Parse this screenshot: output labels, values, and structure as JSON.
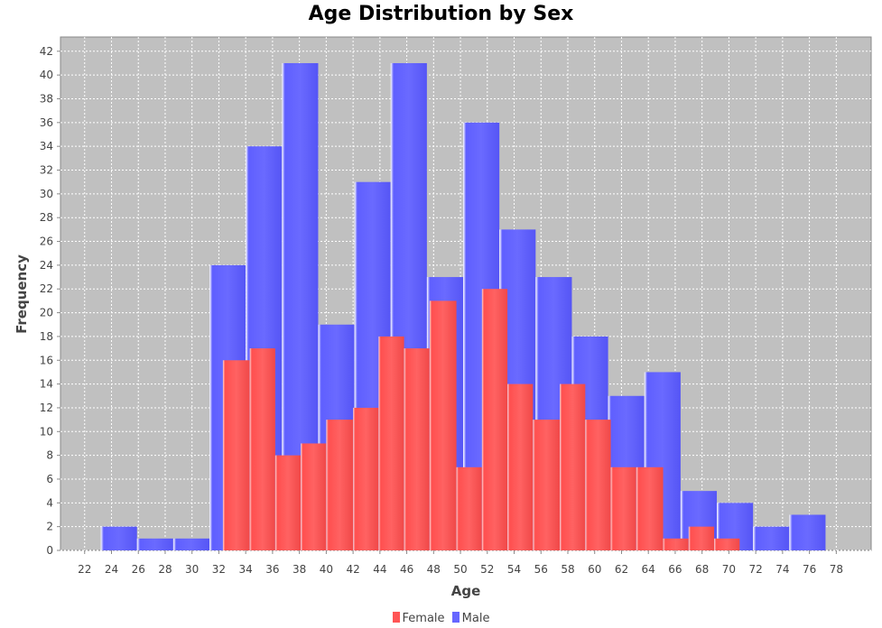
{
  "chart_data": {
    "type": "bar",
    "title": "Age Distribution by Sex",
    "xlabel": "Age",
    "ylabel": "Frequency",
    "xlim": [
      20.2,
      80.6
    ],
    "ylim": [
      0,
      43.2
    ],
    "x_ticks": [
      22,
      24,
      26,
      28,
      30,
      32,
      34,
      36,
      38,
      40,
      42,
      44,
      46,
      48,
      50,
      52,
      54,
      56,
      58,
      60,
      62,
      64,
      66,
      68,
      70,
      72,
      74,
      76,
      78
    ],
    "y_ticks": [
      0,
      2,
      4,
      6,
      8,
      10,
      12,
      14,
      16,
      18,
      20,
      22,
      24,
      26,
      28,
      30,
      32,
      34,
      36,
      38,
      40,
      42
    ],
    "grid": true,
    "legend_position": "bottom",
    "series": [
      {
        "name": "Male",
        "color": "#6666ff",
        "bins": [
          {
            "start": 23.2,
            "end": 25.9,
            "value": 2
          },
          {
            "start": 25.9,
            "end": 28.6,
            "value": 1
          },
          {
            "start": 28.6,
            "end": 31.3,
            "value": 1
          },
          {
            "start": 31.3,
            "end": 34.0,
            "value": 24
          },
          {
            "start": 34.0,
            "end": 36.7,
            "value": 34
          },
          {
            "start": 36.7,
            "end": 39.4,
            "value": 41
          },
          {
            "start": 39.4,
            "end": 42.1,
            "value": 19
          },
          {
            "start": 42.1,
            "end": 44.8,
            "value": 31
          },
          {
            "start": 44.8,
            "end": 47.5,
            "value": 41
          },
          {
            "start": 47.5,
            "end": 50.2,
            "value": 23
          },
          {
            "start": 50.2,
            "end": 52.9,
            "value": 36
          },
          {
            "start": 52.9,
            "end": 55.6,
            "value": 27
          },
          {
            "start": 55.6,
            "end": 58.3,
            "value": 23
          },
          {
            "start": 58.3,
            "end": 61.0,
            "value": 18
          },
          {
            "start": 61.0,
            "end": 63.7,
            "value": 13
          },
          {
            "start": 63.7,
            "end": 66.4,
            "value": 15
          },
          {
            "start": 66.4,
            "end": 69.1,
            "value": 5
          },
          {
            "start": 69.1,
            "end": 71.8,
            "value": 4
          },
          {
            "start": 71.8,
            "end": 74.5,
            "value": 2
          },
          {
            "start": 74.5,
            "end": 77.2,
            "value": 3
          }
        ]
      },
      {
        "name": "Female",
        "color": "#ff5555",
        "bins": [
          {
            "start": 32.3,
            "end": 34.3,
            "value": 16
          },
          {
            "start": 34.3,
            "end": 36.2,
            "value": 17
          },
          {
            "start": 36.2,
            "end": 38.1,
            "value": 8
          },
          {
            "start": 38.1,
            "end": 40.0,
            "value": 9
          },
          {
            "start": 40.0,
            "end": 42.0,
            "value": 11
          },
          {
            "start": 42.0,
            "end": 43.9,
            "value": 12
          },
          {
            "start": 43.9,
            "end": 45.8,
            "value": 18
          },
          {
            "start": 45.8,
            "end": 47.7,
            "value": 17
          },
          {
            "start": 47.7,
            "end": 49.7,
            "value": 21
          },
          {
            "start": 49.7,
            "end": 51.6,
            "value": 7
          },
          {
            "start": 51.6,
            "end": 53.5,
            "value": 22
          },
          {
            "start": 53.5,
            "end": 55.4,
            "value": 14
          },
          {
            "start": 55.4,
            "end": 57.4,
            "value": 11
          },
          {
            "start": 57.4,
            "end": 59.3,
            "value": 14
          },
          {
            "start": 59.3,
            "end": 61.2,
            "value": 11
          },
          {
            "start": 61.2,
            "end": 63.1,
            "value": 7
          },
          {
            "start": 63.1,
            "end": 65.1,
            "value": 7
          },
          {
            "start": 65.1,
            "end": 67.0,
            "value": 1
          },
          {
            "start": 67.0,
            "end": 68.9,
            "value": 2
          },
          {
            "start": 68.9,
            "end": 70.8,
            "value": 1
          }
        ]
      }
    ]
  },
  "legend": {
    "items": [
      {
        "label": "Female",
        "color": "#ff5555"
      },
      {
        "label": "Male",
        "color": "#6666ff"
      }
    ]
  }
}
